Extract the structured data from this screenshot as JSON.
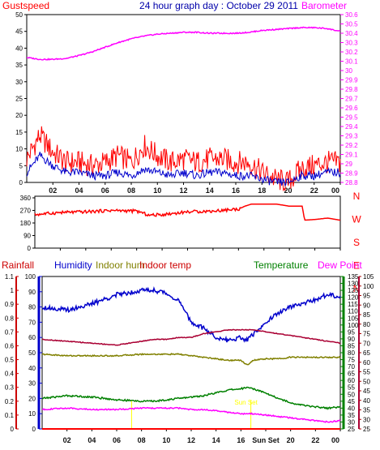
{
  "chart_data": [
    {
      "type": "line",
      "title": "24 hour graph day : October 29 2011",
      "left_axis": {
        "label": "Gustspeed",
        "ylim": [
          0,
          50
        ],
        "ticks": [
          "0",
          "5",
          "10",
          "15",
          "20",
          "25",
          "30",
          "35",
          "40",
          "45",
          "50"
        ],
        "color": "#ff0000"
      },
      "right_axis": {
        "label": "Barometer",
        "ylim": [
          28.8,
          30.6
        ],
        "ticks": [
          "28.8",
          "28.9",
          "29",
          "29.1",
          "29.2",
          "29.3",
          "29.4",
          "29.5",
          "29.6",
          "29.7",
          "29.8",
          "29.9",
          "30",
          "30.1",
          "30.2",
          "30.3",
          "30.4",
          "30.5",
          "30.6"
        ],
        "color": "#ff00ff"
      },
      "x_ticks": [
        "02",
        "04",
        "06",
        "08",
        "10",
        "12",
        "14",
        "16",
        "18",
        "20",
        "22",
        "00"
      ],
      "x": [
        0,
        1,
        2,
        3,
        4,
        5,
        6,
        7,
        8,
        9,
        10,
        11,
        12,
        13,
        14,
        15,
        16,
        17,
        18,
        19,
        20,
        21,
        22,
        23,
        24
      ],
      "series": [
        {
          "name": "Gustspeed",
          "color": "#ff0000",
          "values": [
            7,
            14,
            9,
            6,
            6,
            5,
            6,
            8,
            6,
            11,
            8,
            6,
            7,
            6,
            7,
            7,
            6,
            6,
            3,
            1,
            0,
            4,
            5,
            6,
            6
          ]
        },
        {
          "color": "#0000cc",
          "values": [
            3,
            8,
            5,
            3,
            3,
            2,
            2,
            3,
            2,
            4,
            3,
            2,
            3,
            2,
            3,
            3,
            2,
            2,
            1,
            0,
            0,
            2,
            2,
            3,
            3
          ]
        },
        {
          "name": "Barometer",
          "color": "#ff00ff",
          "values": [
            30.14,
            30.12,
            30.12,
            30.13,
            30.16,
            30.2,
            30.25,
            30.3,
            30.34,
            30.37,
            30.39,
            30.4,
            30.41,
            30.41,
            30.4,
            30.4,
            30.4,
            30.41,
            30.43,
            30.44,
            30.45,
            30.46,
            30.46,
            30.45,
            30.42
          ]
        }
      ]
    },
    {
      "type": "line",
      "left_axis": {
        "ylim": [
          0,
          360
        ],
        "ticks": [
          "0",
          "90",
          "180",
          "270",
          "360"
        ],
        "color": "#ff0000"
      },
      "right_axis": {
        "ticks": [
          "N",
          "W",
          "S",
          "E",
          "N"
        ],
        "color": "#ff0000"
      },
      "x_ticks": [
        "02",
        "04",
        "06",
        "08",
        "10",
        "12",
        "14",
        "16",
        "18",
        "20",
        "22",
        "00"
      ],
      "x": [
        0,
        2,
        4,
        6,
        8,
        9,
        10,
        12,
        14,
        16,
        16.5,
        17,
        19,
        20,
        21,
        21.2,
        22,
        23,
        24
      ],
      "series": [
        {
          "color": "#ff0000",
          "values": [
            240,
            255,
            260,
            270,
            265,
            235,
            240,
            260,
            265,
            280,
            300,
            315,
            315,
            300,
            300,
            200,
            205,
            215,
            200
          ]
        }
      ]
    },
    {
      "type": "line",
      "axes": [
        {
          "label": "Rainfall",
          "ylim": [
            0,
            1.1
          ],
          "ticks": [
            "0",
            "0.1",
            "0.2",
            "0.3",
            "0.4",
            "0.5",
            "0.6",
            "0.7",
            "0.8",
            "0.9",
            "1",
            "1.1"
          ],
          "color": "#cc0000"
        },
        {
          "label": "Humidity",
          "ylim": [
            0,
            100
          ],
          "ticks": [
            "0",
            "10",
            "20",
            "30",
            "40",
            "50",
            "60",
            "70",
            "80",
            "90",
            "100"
          ],
          "color": "#0000cc"
        },
        {
          "label": "Indoor hum",
          "color": "#808000"
        },
        {
          "label": "Indoor temp",
          "color": "#cc0000"
        },
        {
          "label": "Temperature",
          "ylim": [
            25,
            135
          ],
          "ticks": [
            "25",
            "30",
            "35",
            "40",
            "45",
            "50",
            "55",
            "60",
            "65",
            "70",
            "75",
            "80",
            "85",
            "90",
            "95",
            "100",
            "105",
            "110",
            "115",
            "120",
            "125",
            "130",
            "135"
          ],
          "color": "#008000"
        },
        {
          "label": "Dew Point",
          "ylim": [
            25,
            105
          ],
          "ticks": [
            "25",
            "30",
            "35",
            "40",
            "45",
            "50",
            "55",
            "60",
            "65",
            "70",
            "75",
            "80",
            "85",
            "90",
            "95",
            "100",
            "105"
          ],
          "color": "#aa0000"
        }
      ],
      "x_ticks": [
        "02",
        "04",
        "06",
        "08",
        "10",
        "12",
        "14",
        "16",
        "Sun Set",
        "20",
        "22",
        "00"
      ],
      "annotations": [
        {
          "x": 7.2,
          "color": "#ffff00"
        },
        {
          "x": 16.8,
          "text": "Sun Set",
          "color": "#ffff00"
        }
      ],
      "x": [
        0,
        2,
        4,
        6,
        8,
        9,
        10,
        11,
        12,
        13,
        14,
        15,
        16,
        16.5,
        17,
        18,
        19,
        20,
        21,
        22,
        23,
        24
      ],
      "series": [
        {
          "name": "Humidity",
          "color": "#0000cc",
          "unit_axis": "Humidity",
          "values": [
            80,
            78,
            82,
            88,
            91,
            91,
            89,
            84,
            70,
            66,
            60,
            58,
            60,
            58,
            62,
            70,
            76,
            80,
            82,
            85,
            88,
            87
          ]
        },
        {
          "name": "Indoor hum",
          "color": "#808000",
          "unit_axis": "Humidity",
          "values": [
            49,
            48,
            48,
            48,
            49,
            49,
            49,
            49,
            48,
            47,
            46,
            45,
            45,
            42,
            45,
            46,
            46,
            47,
            47,
            47,
            47,
            47
          ]
        },
        {
          "name": "Indoor temp",
          "color": "#aa0033",
          "unit_axis": "Dew Point",
          "values": [
            72,
            71,
            70,
            69,
            71,
            72,
            72,
            73,
            73,
            75,
            76,
            77,
            77,
            77,
            77,
            76,
            75,
            74,
            73,
            72,
            71,
            70
          ]
        },
        {
          "name": "Temperature",
          "color": "#008000",
          "unit_axis": "Temperature",
          "values": [
            47,
            49,
            48,
            46,
            45,
            45,
            46,
            47,
            48,
            49,
            51,
            53,
            54,
            55,
            54,
            51,
            47,
            44,
            42,
            41,
            40,
            41
          ]
        },
        {
          "name": "Dew Point",
          "color": "#ff00ff",
          "unit_axis": "Temperature",
          "values": [
            39,
            40,
            39,
            39,
            40,
            40,
            40,
            40,
            39,
            39,
            38,
            37,
            36,
            36,
            36,
            35,
            34,
            33,
            32,
            31,
            30,
            31
          ]
        },
        {
          "name": "Rainfall",
          "color": "#ff0000",
          "unit_axis": "Rainfall",
          "values": [
            0,
            0,
            0,
            0,
            0,
            0,
            0,
            0,
            0,
            0,
            0,
            0,
            0,
            0,
            0,
            0,
            0,
            0,
            0,
            0,
            0,
            0
          ]
        }
      ]
    }
  ]
}
